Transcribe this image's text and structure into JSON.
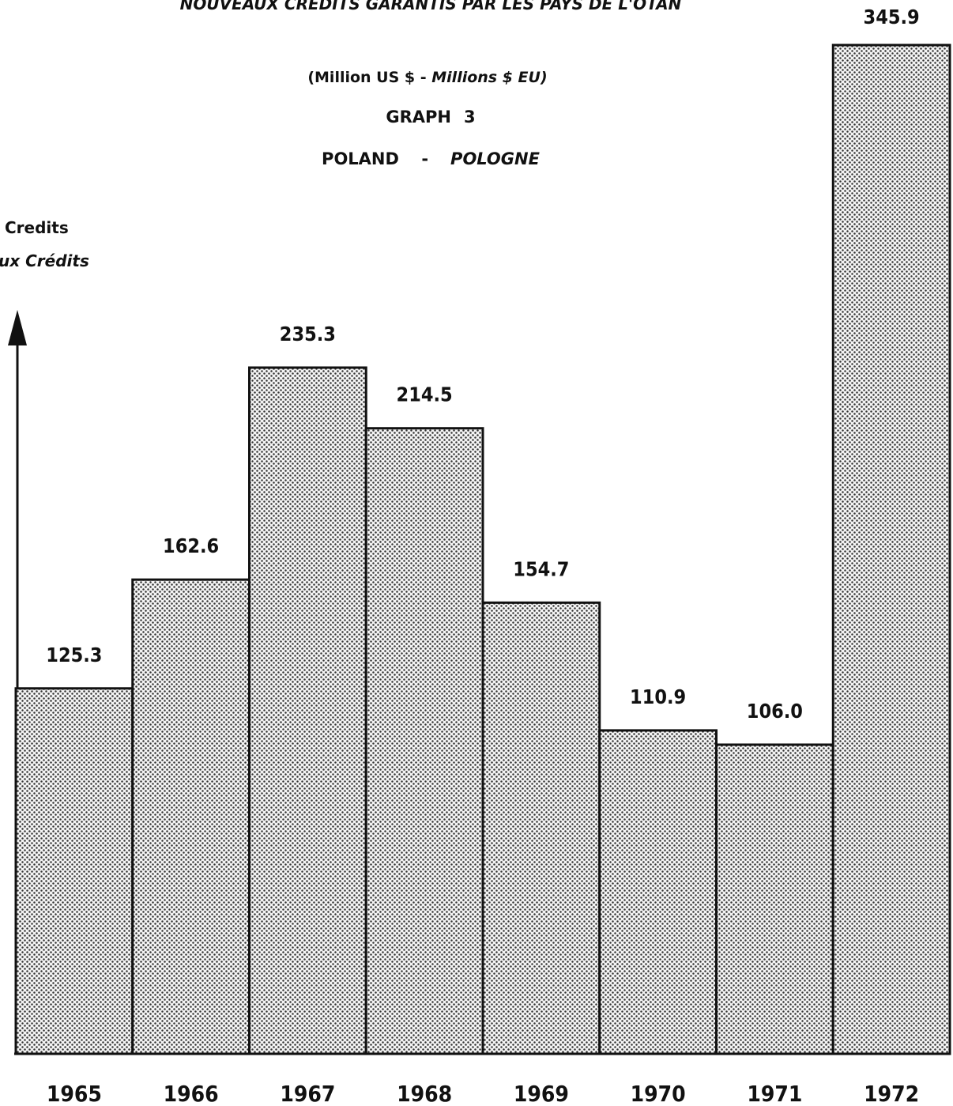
{
  "header": {
    "top_title": "NOUVEAUX CREDITS GARANTIS PAR LES PAYS DE L'OTAN",
    "unit_en": "(Million US $",
    "unit_sep": " - ",
    "unit_fr": "Millions $ EU)",
    "graph_label": "GRAPH",
    "graph_number": "3",
    "country_en": "POLAND",
    "country_sep": "-",
    "country_fr": "POLOGNE"
  },
  "axis": {
    "label_en": "Credits",
    "label_fr": "ux Crédits"
  },
  "chart_data": {
    "type": "bar",
    "categories": [
      "1965",
      "1966",
      "1967",
      "1968",
      "1969",
      "1970",
      "1971",
      "1972"
    ],
    "values": [
      125.3,
      162.6,
      235.3,
      214.5,
      154.7,
      110.9,
      106.0,
      345.9
    ],
    "value_labels": [
      "125.3",
      "162.6",
      "235.3",
      "214.5",
      "154.7",
      "110.9",
      "106.0",
      "345.9"
    ],
    "title": "POLAND - POLOGNE",
    "ylabel": "Credits",
    "ylim": [
      0,
      345.9
    ],
    "grid": false,
    "fill": "stippled grey"
  }
}
